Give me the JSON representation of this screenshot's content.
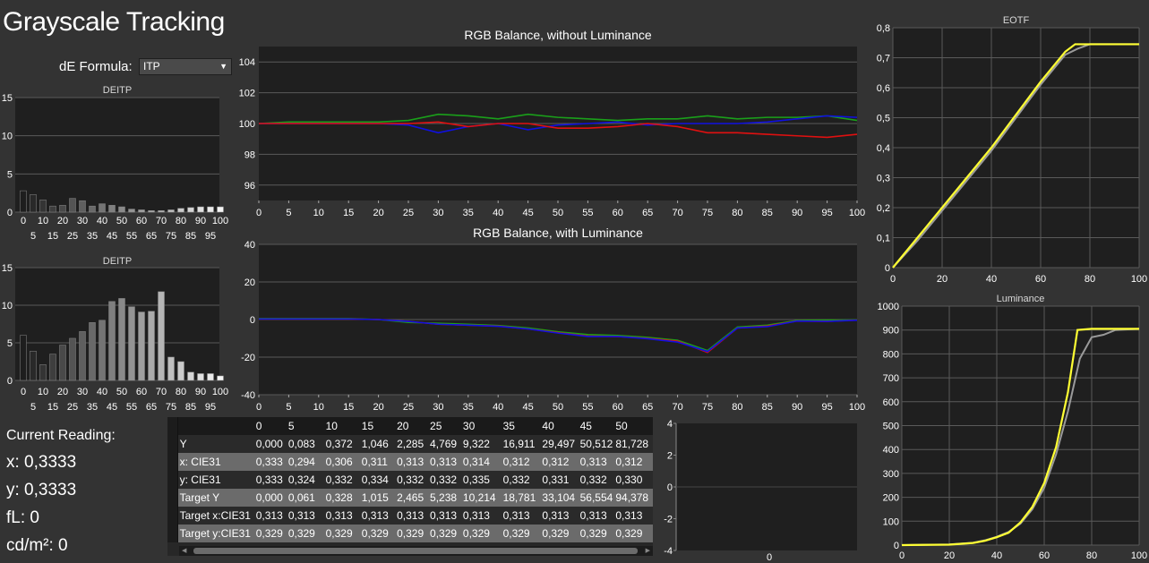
{
  "page": {
    "title": "Grayscale Tracking"
  },
  "formula": {
    "label": "dE Formula:",
    "value": "ITP"
  },
  "reading": {
    "title": "Current Reading:",
    "x": "x: 0,3333",
    "y": "y: 0,3333",
    "fl": "fL: 0",
    "cd": "cd/m²: 0"
  },
  "colors": {
    "red": "#e01010",
    "green": "#1aa01a",
    "blue": "#1010e0",
    "yellow": "#ffff33",
    "gray": "#9a9a9a",
    "magenta": "#cc33cc"
  },
  "chart_data": [
    {
      "id": "deitp-top",
      "type": "bar",
      "title": "DEITP",
      "ylim": [
        0,
        15
      ],
      "yticks": [
        0,
        5,
        10,
        15
      ],
      "categories": [
        0,
        5,
        10,
        15,
        20,
        25,
        30,
        35,
        40,
        45,
        50,
        55,
        60,
        65,
        70,
        75,
        80,
        85,
        90,
        95,
        100
      ],
      "values": [
        2.8,
        2.3,
        1.6,
        0.8,
        0.9,
        1.8,
        1.5,
        0.8,
        1.1,
        0.9,
        0.7,
        0.4,
        0.3,
        0.2,
        0.2,
        0.3,
        0.5,
        0.6,
        0.7,
        0.7,
        0.7
      ],
      "xtick_top": [
        "0",
        "10",
        "20",
        "30",
        "40",
        "50",
        "60",
        "70",
        "80",
        "90",
        "100"
      ],
      "xtick_bottom": [
        "5",
        "15",
        "25",
        "35",
        "45",
        "55",
        "65",
        "75",
        "85",
        "95"
      ]
    },
    {
      "id": "deitp-bottom",
      "type": "bar",
      "title": "DEITP",
      "ylim": [
        0,
        15
      ],
      "yticks": [
        0,
        5,
        10,
        15
      ],
      "categories": [
        0,
        5,
        10,
        15,
        20,
        25,
        30,
        35,
        40,
        45,
        50,
        55,
        60,
        65,
        70,
        75,
        80,
        85,
        90,
        95,
        100
      ],
      "values": [
        6.0,
        3.9,
        2.1,
        3.5,
        4.7,
        5.6,
        6.5,
        7.7,
        8.0,
        10.5,
        10.9,
        9.8,
        9.1,
        9.2,
        11.8,
        3.1,
        2.5,
        1.1,
        0.9,
        0.9,
        0.6
      ],
      "xtick_top": [
        "0",
        "10",
        "20",
        "30",
        "40",
        "50",
        "60",
        "70",
        "80",
        "90",
        "100"
      ],
      "xtick_bottom": [
        "5",
        "15",
        "25",
        "35",
        "45",
        "55",
        "65",
        "75",
        "85",
        "95"
      ]
    },
    {
      "id": "rgb-no-lum",
      "type": "line",
      "title": "RGB Balance, without Luminance",
      "ylim": [
        95,
        105
      ],
      "yticks": [
        96,
        98,
        100,
        102,
        104
      ],
      "x": [
        0,
        5,
        10,
        15,
        20,
        25,
        30,
        35,
        40,
        45,
        50,
        55,
        60,
        65,
        70,
        75,
        80,
        85,
        90,
        95,
        100
      ],
      "xticks": [
        "0",
        "5",
        "10",
        "15",
        "20",
        "25",
        "30",
        "35",
        "40",
        "45",
        "50",
        "55",
        "60",
        "65",
        "70",
        "75",
        "80",
        "85",
        "90",
        "95",
        "100"
      ],
      "series": [
        {
          "color": "green",
          "values": [
            100,
            100.1,
            100.1,
            100.1,
            100.1,
            100.2,
            100.6,
            100.5,
            100.3,
            100.6,
            100.4,
            100.3,
            100.2,
            100.3,
            100.3,
            100.5,
            100.3,
            100.4,
            100.4,
            100.5,
            100.2
          ]
        },
        {
          "color": "blue",
          "values": [
            100,
            100,
            100,
            100,
            100,
            99.9,
            99.4,
            99.8,
            100,
            99.6,
            99.9,
            100,
            100.1,
            99.9,
            100,
            100,
            100,
            100.1,
            100.3,
            100.5,
            100.4
          ]
        },
        {
          "color": "red",
          "values": [
            100,
            100,
            100,
            100,
            100,
            100,
            100.1,
            99.8,
            100,
            100,
            99.7,
            99.7,
            99.8,
            100,
            99.8,
            99.4,
            99.4,
            99.3,
            99.2,
            99.1,
            99.3
          ]
        }
      ]
    },
    {
      "id": "rgb-with-lum",
      "type": "line",
      "title": "RGB Balance, with Luminance",
      "ylim": [
        -40,
        40
      ],
      "yticks": [
        -40,
        -20,
        0,
        20,
        40
      ],
      "x": [
        0,
        5,
        10,
        15,
        20,
        25,
        30,
        35,
        40,
        45,
        50,
        55,
        60,
        65,
        70,
        75,
        80,
        85,
        90,
        95,
        100
      ],
      "xticks": [
        "0",
        "5",
        "10",
        "15",
        "20",
        "25",
        "30",
        "35",
        "40",
        "45",
        "50",
        "55",
        "60",
        "65",
        "70",
        "75",
        "80",
        "85",
        "90",
        "95",
        "100"
      ],
      "series": [
        {
          "color": "green",
          "values": [
            0.5,
            0.5,
            0.5,
            0.5,
            0,
            -1.5,
            -2,
            -2.5,
            -3.2,
            -4.5,
            -6.5,
            -8,
            -8.5,
            -9.5,
            -11,
            -16.5,
            -4,
            -3,
            -0.5,
            -0.3,
            -0.2
          ]
        },
        {
          "color": "red",
          "values": [
            0.3,
            0.3,
            0.3,
            0.3,
            0,
            -1,
            -2.5,
            -3,
            -3.5,
            -5,
            -7,
            -8.8,
            -9,
            -10,
            -11.5,
            -17.5,
            -4.5,
            -3.5,
            -0.8,
            -1,
            -0.3
          ]
        },
        {
          "color": "blue",
          "values": [
            0.3,
            0.3,
            0.3,
            0.3,
            0,
            -1,
            -2.5,
            -3,
            -3.6,
            -5,
            -7.2,
            -9,
            -9,
            -10.2,
            -12,
            -17,
            -4.5,
            -3.8,
            -0.8,
            -1,
            -0.4
          ]
        }
      ]
    },
    {
      "id": "eotf",
      "type": "line",
      "title": "EOTF",
      "xlim": [
        0,
        100
      ],
      "ylim": [
        0,
        0.8
      ],
      "xticks": [
        "0",
        "20",
        "40",
        "60",
        "80",
        "100"
      ],
      "yticks": [
        "0",
        "0,1",
        "0,2",
        "0,3",
        "0,4",
        "0,5",
        "0,6",
        "0,7",
        "0,8"
      ],
      "series": [
        {
          "color": "gray",
          "x": [
            0,
            10,
            20,
            30,
            40,
            50,
            60,
            70,
            75,
            80,
            90,
            100
          ],
          "y": [
            0,
            0.09,
            0.19,
            0.29,
            0.39,
            0.5,
            0.61,
            0.71,
            0.73,
            0.745,
            0.745,
            0.745
          ]
        },
        {
          "color": "yellow",
          "x": [
            0,
            10,
            20,
            30,
            40,
            50,
            60,
            70,
            74,
            80,
            90,
            100
          ],
          "y": [
            0,
            0.1,
            0.2,
            0.3,
            0.4,
            0.51,
            0.62,
            0.72,
            0.745,
            0.745,
            0.745,
            0.745
          ]
        }
      ]
    },
    {
      "id": "luminance",
      "type": "line",
      "title": "Luminance",
      "xlim": [
        0,
        100
      ],
      "ylim": [
        0,
        1000
      ],
      "xticks": [
        "0",
        "20",
        "40",
        "60",
        "80",
        "100"
      ],
      "yticks": [
        "0",
        "100",
        "200",
        "300",
        "400",
        "500",
        "600",
        "700",
        "800",
        "900",
        "1000"
      ],
      "series": [
        {
          "color": "gray",
          "x": [
            0,
            20,
            30,
            35,
            40,
            45,
            50,
            55,
            60,
            65,
            70,
            75,
            80,
            85,
            90,
            100
          ],
          "y": [
            0,
            3,
            10,
            20,
            35,
            55,
            90,
            150,
            240,
            380,
            560,
            780,
            870,
            880,
            900,
            905
          ]
        },
        {
          "color": "yellow",
          "x": [
            0,
            20,
            30,
            35,
            40,
            45,
            50,
            55,
            60,
            65,
            70,
            74,
            80,
            90,
            100
          ],
          "y": [
            0,
            2,
            9,
            18,
            33,
            52,
            95,
            160,
            260,
            410,
            640,
            900,
            905,
            905,
            905
          ]
        }
      ]
    },
    {
      "id": "small-chart",
      "type": "line",
      "ylim": [
        -4,
        4
      ],
      "yticks": [
        "4",
        "2",
        "0",
        "-2",
        "-4"
      ],
      "xticks": [
        "0"
      ]
    }
  ],
  "table": {
    "columns": [
      "0",
      "5",
      "10",
      "15",
      "20",
      "25",
      "30",
      "35",
      "40",
      "45",
      "50"
    ],
    "rows": [
      {
        "label": "Y",
        "values": [
          "0,000",
          "0,083",
          "0,372",
          "1,046",
          "2,285",
          "4,769",
          "9,322",
          "16,911",
          "29,497",
          "50,512",
          "81,728"
        ]
      },
      {
        "label": "x: CIE31",
        "values": [
          "0,333",
          "0,294",
          "0,306",
          "0,311",
          "0,313",
          "0,313",
          "0,314",
          "0,312",
          "0,312",
          "0,313",
          "0,312"
        ]
      },
      {
        "label": "y: CIE31",
        "values": [
          "0,333",
          "0,324",
          "0,332",
          "0,334",
          "0,332",
          "0,332",
          "0,335",
          "0,332",
          "0,331",
          "0,332",
          "0,330"
        ]
      },
      {
        "label": "Target Y",
        "values": [
          "0,000",
          "0,061",
          "0,328",
          "1,015",
          "2,465",
          "5,238",
          "10,214",
          "18,781",
          "33,104",
          "56,554",
          "94,378"
        ]
      },
      {
        "label": "Target x:CIE31",
        "values": [
          "0,313",
          "0,313",
          "0,313",
          "0,313",
          "0,313",
          "0,313",
          "0,313",
          "0,313",
          "0,313",
          "0,313",
          "0,313"
        ]
      },
      {
        "label": "Target y:CIE31",
        "values": [
          "0,329",
          "0,329",
          "0,329",
          "0,329",
          "0,329",
          "0,329",
          "0,329",
          "0,329",
          "0,329",
          "0,329",
          "0,329"
        ]
      }
    ]
  }
}
